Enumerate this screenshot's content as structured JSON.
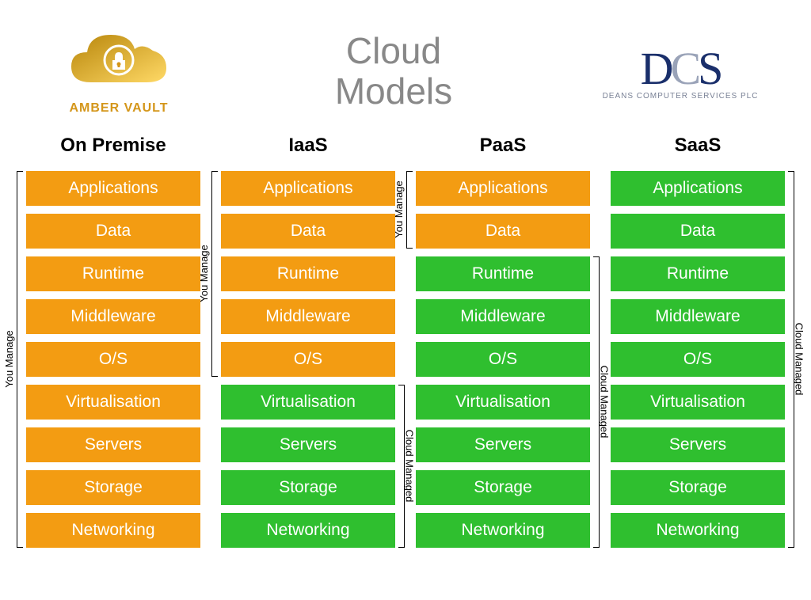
{
  "title_line1": "Cloud",
  "title_line2": "Models",
  "title_color": "#888888",
  "title_fontsize": 46,
  "logo_left": {
    "brand": "AMBER VAULT",
    "text_color": "#d4961a",
    "cloud_gradient_start": "#b8860b",
    "cloud_gradient_end": "#ffd966",
    "lock_color": "#ffffff"
  },
  "logo_right": {
    "brand": "DCS",
    "d_color": "#1a2f6b",
    "c_color": "#9aa3b8",
    "s_color": "#1a2f6b",
    "sub": "DEANS COMPUTER SERVICES PLC",
    "sub_color": "#7a8296"
  },
  "colors": {
    "you_manage": "#f39c12",
    "cloud_managed": "#2fbf2f",
    "text": "#ffffff",
    "background": "#ffffff"
  },
  "labels": {
    "you_manage": "You Manage",
    "cloud_managed": "Cloud Managed"
  },
  "layer_names": [
    "Applications",
    "Data",
    "Runtime",
    "Middleware",
    "O/S",
    "Virtualisation",
    "Servers",
    "Storage",
    "Networking"
  ],
  "layer_box": {
    "height": 44,
    "gap": 10,
    "fontsize": 21
  },
  "columns": [
    {
      "name": "On Premise",
      "you_manage_count": 9,
      "brackets": [
        {
          "side": "left",
          "label": "you_manage",
          "from": 0,
          "to": 8
        }
      ]
    },
    {
      "name": "IaaS",
      "you_manage_count": 5,
      "brackets": [
        {
          "side": "left",
          "label": "you_manage",
          "from": 0,
          "to": 4
        },
        {
          "side": "right",
          "label": "cloud_managed",
          "from": 5,
          "to": 8
        }
      ]
    },
    {
      "name": "PaaS",
      "you_manage_count": 2,
      "brackets": [
        {
          "side": "left",
          "label": "you_manage",
          "from": 0,
          "to": 1
        },
        {
          "side": "right",
          "label": "cloud_managed",
          "from": 2,
          "to": 8
        }
      ]
    },
    {
      "name": "SaaS",
      "you_manage_count": 0,
      "brackets": [
        {
          "side": "right",
          "label": "cloud_managed",
          "from": 0,
          "to": 8
        }
      ]
    }
  ]
}
